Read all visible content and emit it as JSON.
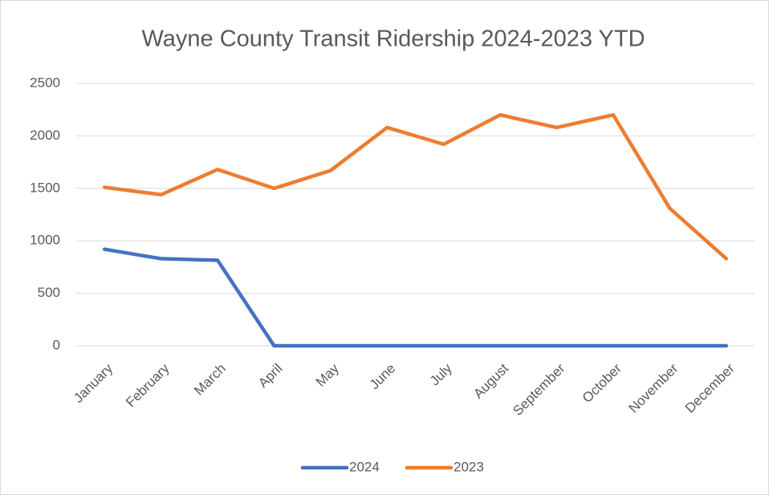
{
  "chart_data": {
    "type": "line",
    "title": "Wayne County Transit Ridership 2024-2023 YTD",
    "categories": [
      "January",
      "February",
      "March",
      "April",
      "May",
      "June",
      "July",
      "August",
      "September",
      "October",
      "November",
      "December"
    ],
    "series": [
      {
        "name": "2024",
        "color": "#4472c4",
        "values": [
          920,
          830,
          815,
          0,
          0,
          0,
          0,
          0,
          0,
          0,
          0,
          0
        ]
      },
      {
        "name": "2023",
        "color": "#ed7d31",
        "values": [
          1510,
          1440,
          1680,
          1500,
          1670,
          2080,
          1920,
          2200,
          2080,
          2200,
          1310,
          830
        ]
      }
    ],
    "ylim": [
      0,
      2500
    ],
    "yticks": [
      0,
      500,
      1000,
      1500,
      2000,
      2500
    ],
    "grid": true,
    "legend": "bottom"
  }
}
